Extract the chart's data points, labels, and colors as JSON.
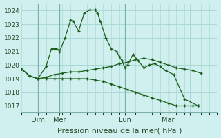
{
  "bg_color": "#cff0ee",
  "grid_color": "#aad8d4",
  "line_color": "#1a5c1a",
  "title": "Pression niveau de la mer( hPa )",
  "ylim": [
    1016.5,
    1024.5
  ],
  "yticks": [
    1017,
    1018,
    1019,
    1020,
    1021,
    1022,
    1023,
    1024
  ],
  "xlim": [
    0,
    72
  ],
  "x_tick_pos": [
    6,
    14,
    38,
    54,
    62
  ],
  "x_tick_labels": [
    "Dim",
    "Mer",
    "Lun",
    "Mar",
    ""
  ],
  "x_vline_pos": [
    6,
    14,
    38,
    54
  ],
  "series1_x": [
    0,
    3,
    6,
    9,
    11,
    12,
    13,
    14,
    16,
    18,
    19,
    21,
    23,
    25,
    27,
    28,
    29,
    31,
    33,
    35,
    36,
    37,
    38,
    39,
    41,
    43,
    45,
    47,
    49,
    51,
    53,
    56,
    60,
    65
  ],
  "series1_y": [
    1019.7,
    1019.2,
    1019.0,
    1019.9,
    1021.2,
    1021.2,
    1021.2,
    1021.0,
    1022.0,
    1023.3,
    1023.2,
    1022.5,
    1023.8,
    1024.05,
    1024.05,
    1023.8,
    1023.2,
    1022.0,
    1021.2,
    1021.0,
    1020.6,
    1020.3,
    1019.8,
    1020.0,
    1020.8,
    1020.3,
    1019.8,
    1020.0,
    1020.1,
    1019.9,
    1019.6,
    1019.3,
    1017.5,
    1017.0
  ],
  "series2_x": [
    0,
    3,
    6,
    9,
    12,
    15,
    18,
    21,
    24,
    27,
    30,
    33,
    36,
    39,
    42,
    45,
    48,
    51,
    54,
    57,
    60,
    63,
    66
  ],
  "series2_y": [
    1019.7,
    1019.2,
    1019.0,
    1019.1,
    1019.3,
    1019.4,
    1019.5,
    1019.5,
    1019.6,
    1019.7,
    1019.8,
    1019.9,
    1020.1,
    1020.2,
    1020.4,
    1020.5,
    1020.4,
    1020.2,
    1020.0,
    1019.8,
    1019.7,
    1019.6,
    1019.4
  ],
  "series3_x": [
    0,
    3,
    6,
    9,
    12,
    15,
    18,
    21,
    24,
    27,
    30,
    33,
    36,
    39,
    42,
    45,
    48,
    51,
    54,
    57,
    60,
    63,
    65
  ],
  "series3_y": [
    1019.7,
    1019.2,
    1019.0,
    1019.0,
    1019.0,
    1019.0,
    1019.0,
    1019.0,
    1019.0,
    1018.9,
    1018.8,
    1018.6,
    1018.4,
    1018.2,
    1018.0,
    1017.8,
    1017.6,
    1017.4,
    1017.2,
    1017.0,
    1017.0,
    1017.0,
    1017.0
  ]
}
